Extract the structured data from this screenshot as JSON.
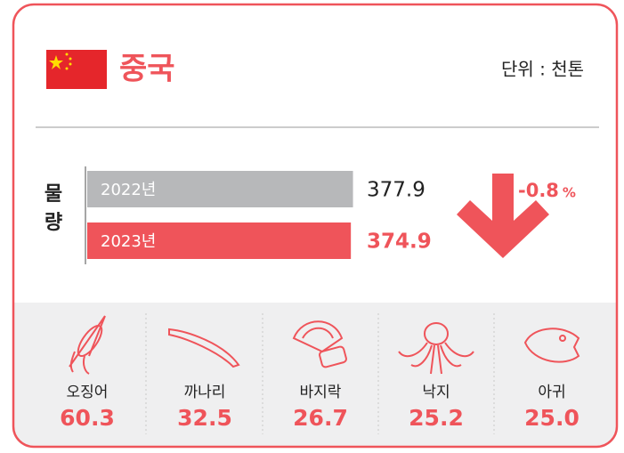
{
  "header": {
    "title": "중국",
    "unit": "단위 : 천톤"
  },
  "volume": {
    "label_top": "물",
    "label_bottom": "량",
    "categories": [
      "2022년",
      "2023년"
    ],
    "values": [
      377.9,
      374.9
    ],
    "colors": [
      "#b7b8ba",
      "#ef545a"
    ],
    "change": -0.8,
    "change_unit": "%"
  },
  "species": {
    "names": [
      "오징어",
      "까나리",
      "바지락",
      "낙지",
      "아귀"
    ],
    "values": [
      60.3,
      32.5,
      26.7,
      25.2,
      25.0
    ],
    "value_labels": [
      "60.3",
      "32.5",
      "26.7",
      "25.2",
      "25.0"
    ]
  }
}
